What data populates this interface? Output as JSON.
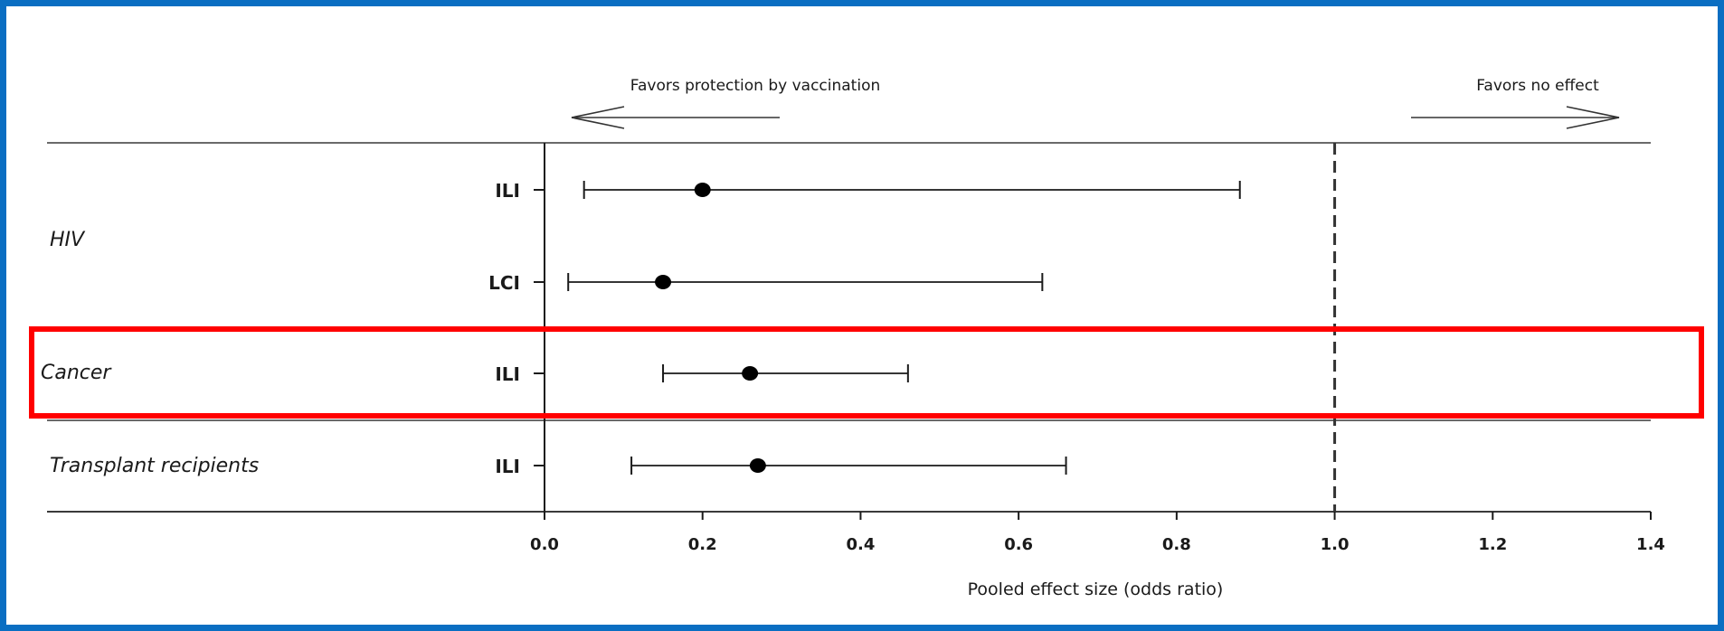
{
  "colors": {
    "border": "#0a6ec2",
    "highlight": "#ff0000",
    "ink": "#1a1a1a"
  },
  "chart_data": {
    "type": "forest",
    "xlabel": "Pooled effect size (odds ratio)",
    "xlim": [
      0.0,
      1.4
    ],
    "xticks": [
      "0.0",
      "0.2",
      "0.4",
      "0.6",
      "0.8",
      "1.0",
      "1.2",
      "1.4"
    ],
    "reference_line": 1.0,
    "annotations": {
      "left": "Favors protection by vaccination",
      "right": "Favors no effect"
    },
    "groups": [
      {
        "name": "HIV",
        "rows": [
          {
            "label": "ILI",
            "estimate": 0.2,
            "lower": 0.05,
            "upper": 0.88
          },
          {
            "label": "LCI",
            "estimate": 0.15,
            "lower": 0.03,
            "upper": 0.63
          }
        ]
      },
      {
        "name": "Cancer",
        "highlighted": true,
        "rows": [
          {
            "label": "ILI",
            "estimate": 0.26,
            "lower": 0.15,
            "upper": 0.46
          }
        ]
      },
      {
        "name": "Transplant recipients",
        "rows": [
          {
            "label": "ILI",
            "estimate": 0.27,
            "lower": 0.11,
            "upper": 0.66
          }
        ]
      }
    ]
  }
}
